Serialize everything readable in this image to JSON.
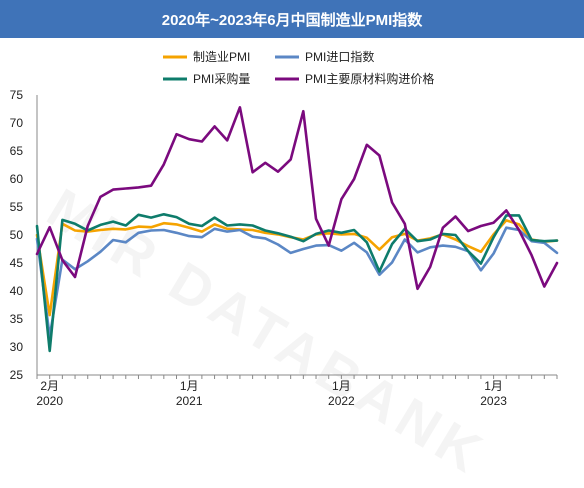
{
  "title": "2020年~2023年6月中国制造业PMI指数",
  "watermark": "MIR DATABANK",
  "chart_data": {
    "type": "line",
    "title": "2020年~2023年6月中国制造业PMI指数",
    "xlabel": "",
    "ylabel": "",
    "ylim": [
      25,
      75
    ],
    "yticks": [
      25,
      30,
      35,
      40,
      45,
      50,
      55,
      60,
      65,
      70,
      75
    ],
    "grid": false,
    "legend_position": "top",
    "x": [
      "2020-01",
      "2020-02",
      "2020-03",
      "2020-04",
      "2020-05",
      "2020-06",
      "2020-07",
      "2020-08",
      "2020-09",
      "2020-10",
      "2020-11",
      "2020-12",
      "2021-01",
      "2021-02",
      "2021-03",
      "2021-04",
      "2021-05",
      "2021-06",
      "2021-07",
      "2021-08",
      "2021-09",
      "2021-10",
      "2021-11",
      "2021-12",
      "2022-01",
      "2022-02",
      "2022-03",
      "2022-04",
      "2022-05",
      "2022-06",
      "2022-07",
      "2022-08",
      "2022-09",
      "2022-10",
      "2022-11",
      "2022-12",
      "2023-01",
      "2023-02",
      "2023-03",
      "2023-04",
      "2023-05",
      "2023-06"
    ],
    "xtick_labels": [
      {
        "month": "2020-02",
        "line1": "2月",
        "line2": "2020"
      },
      {
        "month": "2021-01",
        "line1": "1月",
        "line2": "2021"
      },
      {
        "month": "2022-01",
        "line1": "1月",
        "line2": "2022"
      },
      {
        "month": "2023-01",
        "line1": "1月",
        "line2": "2023"
      }
    ],
    "series": [
      {
        "name": "制造业PMI",
        "color": "#f5a300",
        "values": [
          50.0,
          35.7,
          52.0,
          50.8,
          50.6,
          50.9,
          51.1,
          51.0,
          51.5,
          51.4,
          52.1,
          51.9,
          51.3,
          50.6,
          51.9,
          51.1,
          51.0,
          50.9,
          50.4,
          50.1,
          49.6,
          49.2,
          50.1,
          50.3,
          50.1,
          50.2,
          49.5,
          47.4,
          49.6,
          50.2,
          49.0,
          49.4,
          50.1,
          49.2,
          48.0,
          47.0,
          50.1,
          52.6,
          51.9,
          49.2,
          48.8,
          49.0
        ]
      },
      {
        "name": "PMI进口指数",
        "color": "#5b87c5",
        "values": [
          49.3,
          31.9,
          45.6,
          43.9,
          45.3,
          47.0,
          49.1,
          48.7,
          50.4,
          50.8,
          50.9,
          50.4,
          49.8,
          49.6,
          51.1,
          50.6,
          50.9,
          49.7,
          49.4,
          48.3,
          46.8,
          47.5,
          48.1,
          48.2,
          47.2,
          48.6,
          46.9,
          42.9,
          45.1,
          49.2,
          46.9,
          47.8,
          48.1,
          47.9,
          47.1,
          43.7,
          46.7,
          51.3,
          50.9,
          48.9,
          48.6,
          46.8
        ]
      },
      {
        "name": "PMI采购量",
        "color": "#0e7c6b",
        "values": [
          51.6,
          29.3,
          52.7,
          52.0,
          50.8,
          51.8,
          52.4,
          51.7,
          53.6,
          53.1,
          53.7,
          53.2,
          52.0,
          51.6,
          53.1,
          51.7,
          51.9,
          51.7,
          50.8,
          50.3,
          49.7,
          48.9,
          50.2,
          50.8,
          50.4,
          50.9,
          48.7,
          43.5,
          48.4,
          51.1,
          48.9,
          49.2,
          50.2,
          50.0,
          47.1,
          44.9,
          49.6,
          53.5,
          53.5,
          49.1,
          48.9,
          49.0
        ]
      },
      {
        "name": "PMI主要原材料购进价格",
        "color": "#7b0a7e",
        "values": [
          46.6,
          51.4,
          45.5,
          42.5,
          51.6,
          56.8,
          58.1,
          58.3,
          58.5,
          58.8,
          62.6,
          68.0,
          67.1,
          66.7,
          69.4,
          66.9,
          72.8,
          61.2,
          62.9,
          61.3,
          63.5,
          72.1,
          52.9,
          48.1,
          56.4,
          60.0,
          66.1,
          64.2,
          55.8,
          52.0,
          40.4,
          44.3,
          51.3,
          53.3,
          50.7,
          51.6,
          52.2,
          54.4,
          50.9,
          46.4,
          40.8,
          45.0
        ]
      }
    ]
  }
}
